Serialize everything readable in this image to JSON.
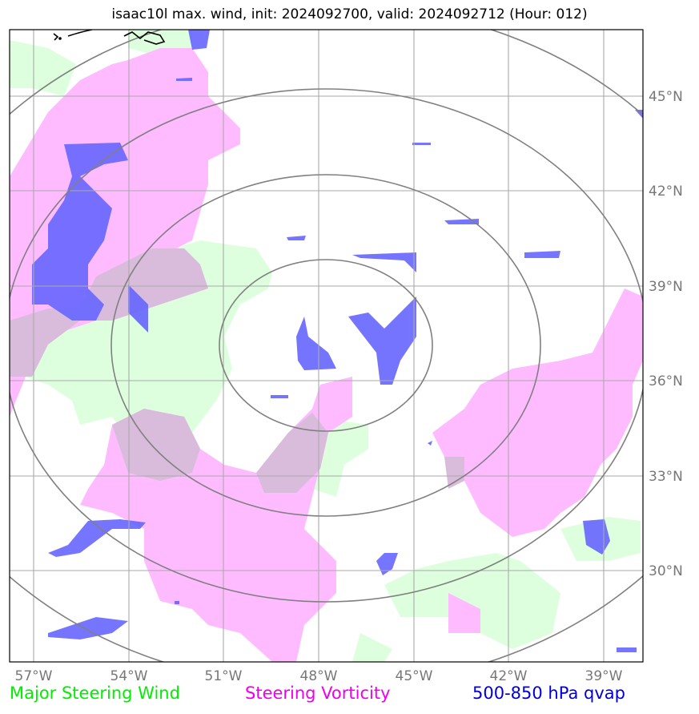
{
  "title": "isaac10l max. wind, init: 2024092700, valid: 2024092712 (Hour: 012)",
  "map": {
    "lon_ticks": [
      "57°W",
      "54°W",
      "51°W",
      "48°W",
      "45°W",
      "42°W",
      "39°W"
    ],
    "lat_ticks": [
      "45°N",
      "42°N",
      "39°N",
      "36°N",
      "33°N",
      "30°N"
    ],
    "range_rings": 4,
    "storm_center": {
      "lon": -47.8,
      "lat": 37.2
    }
  },
  "legend": {
    "steering_wind": "Major Steering Wind",
    "steering_vorticity": "Steering Vorticity",
    "qvap": "500-850 hPa qvap"
  },
  "colors": {
    "steering_wind": "#00ee00",
    "steering_vorticity": "#ee00ee",
    "qvap": "#0000dd",
    "wind_fill": "#ddffdd",
    "vorticity_fill": "#ffbbff",
    "qvap_fill": "#6666ff",
    "grid": "#aaaaaa",
    "rings": "#808080"
  }
}
